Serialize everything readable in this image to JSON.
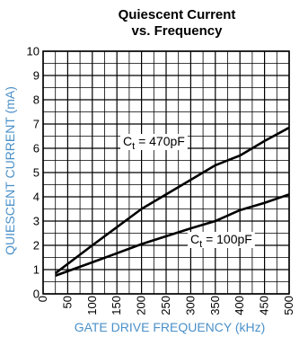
{
  "chart_data": {
    "type": "line",
    "title": "Quiescent Current",
    "subtitle": "vs. Frequency",
    "xlabel": "GATE DRIVE FREQUENCY (kHz)",
    "ylabel": "QUIESCENT CURRENT (mA)",
    "xlim": [
      0,
      500
    ],
    "ylim": [
      0,
      10
    ],
    "x_ticks": [
      0,
      50,
      100,
      150,
      200,
      250,
      300,
      350,
      400,
      450,
      500
    ],
    "y_ticks": [
      0,
      1,
      2,
      3,
      4,
      5,
      6,
      7,
      8,
      9,
      10
    ],
    "grid": true,
    "series": [
      {
        "label_main": "C",
        "label_sub": "t",
        "label_rest": " = 470pF",
        "x": [
          25,
          100,
          200,
          300,
          350,
          400,
          450,
          500
        ],
        "y": [
          0.85,
          2.0,
          3.5,
          4.7,
          5.3,
          5.7,
          6.3,
          6.85
        ]
      },
      {
        "label_main": "C",
        "label_sub": "t",
        "label_rest": " = 100pF",
        "x": [
          25,
          100,
          200,
          300,
          350,
          400,
          450,
          500
        ],
        "y": [
          0.75,
          1.3,
          2.05,
          2.7,
          3.0,
          3.45,
          3.75,
          4.1
        ]
      }
    ],
    "colors": {
      "line": "#000000",
      "grid": "#000000",
      "axis_label": "#4a90c8"
    }
  }
}
